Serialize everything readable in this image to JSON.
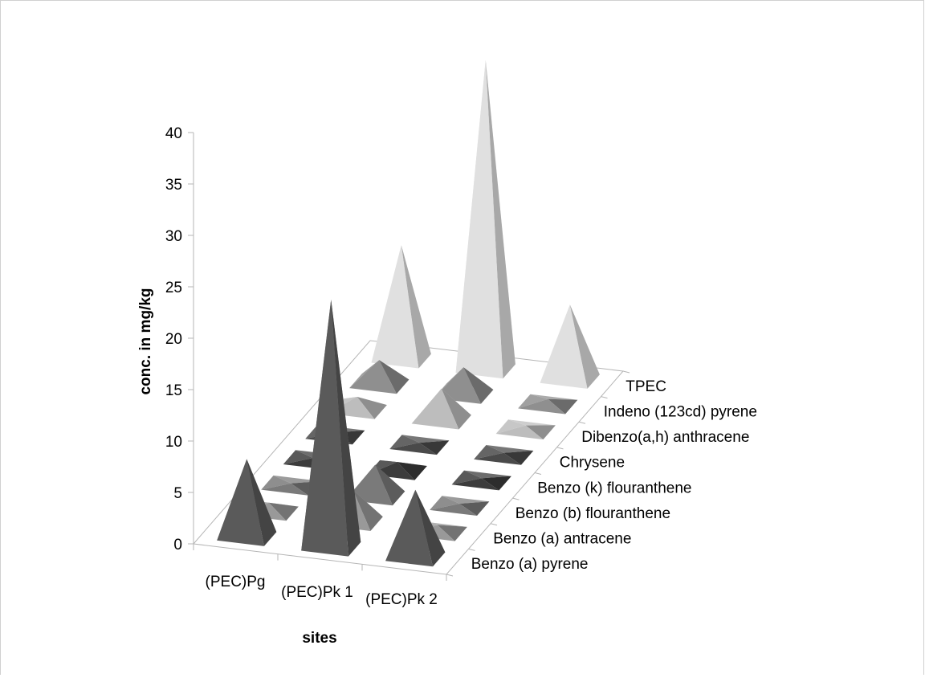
{
  "chart_data": {
    "type": "3d-pyramid",
    "ylabel": "conc. in mg/kg",
    "xlabel": "sites",
    "ylim": [
      0,
      40
    ],
    "yticks": [
      "0",
      "5",
      "10",
      "15",
      "20",
      "25",
      "30",
      "35",
      "40"
    ],
    "categories": [
      "(PEC)Pg",
      "(PEC)Pk 1",
      "(PEC)Pk 2"
    ],
    "series": [
      {
        "name": "Benzo (a) pyrene",
        "values": [
          7.5,
          24,
          6.5
        ],
        "color": "#5a5a5a"
      },
      {
        "name": "Benzo (a) antracene",
        "values": [
          0.8,
          3,
          0.6
        ],
        "color": "#999999"
      },
      {
        "name": "Benzo (b) flouranthene",
        "values": [
          0.2,
          3,
          0.2
        ],
        "color": "#7a7a7a"
      },
      {
        "name": "Benzo (k) flouranthene",
        "values": [
          0.2,
          0.8,
          0.2
        ],
        "color": "#3c3c3c"
      },
      {
        "name": "Chrysene",
        "values": [
          0.2,
          0.2,
          0.2
        ],
        "color": "#4a4a4a"
      },
      {
        "name": "Dibenzo(a,h) anthracene",
        "values": [
          1.2,
          3,
          0.4
        ],
        "color": "#bdbdbd"
      },
      {
        "name": "Indeno (123cd) pyrene",
        "values": [
          2.3,
          2.6,
          0.5
        ],
        "color": "#8f8f8f"
      },
      {
        "name": "TPEC",
        "values": [
          11,
          30,
          7.2
        ],
        "color": "#e0e0e0"
      }
    ]
  }
}
